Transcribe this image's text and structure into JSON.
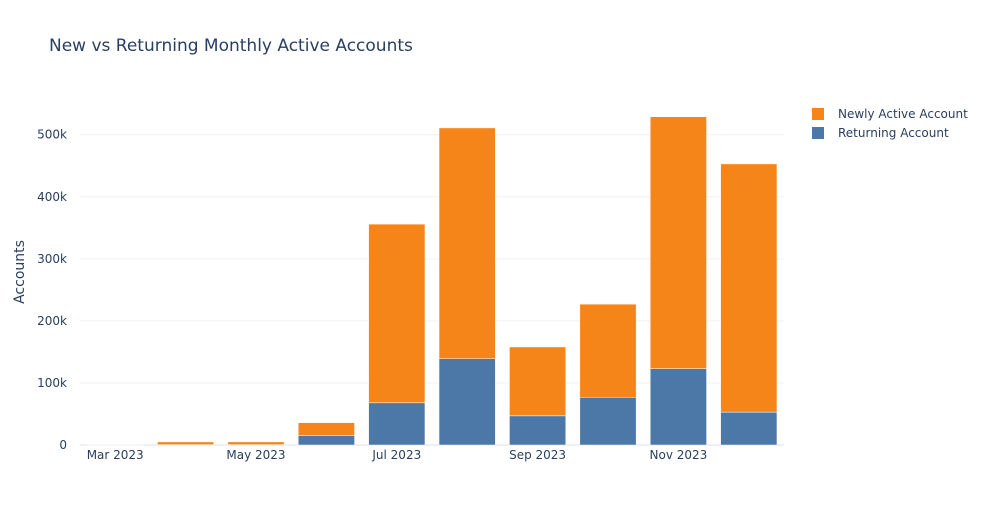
{
  "chart_data": {
    "type": "bar",
    "barmode": "stack",
    "title": "New vs Returning Monthly Active Accounts",
    "xlabel": "",
    "ylabel": "Accounts",
    "ylim": [
      0,
      556000
    ],
    "grid": true,
    "legend_position": "top-right",
    "categories": [
      "Mar 2023",
      "Apr 2023",
      "May 2023",
      "Jun 2023",
      "Jul 2023",
      "Aug 2023",
      "Sep 2023",
      "Oct 2023",
      "Nov 2023",
      "Dec 2023"
    ],
    "x_tick_labels": [
      "Mar 2023",
      "",
      "May 2023",
      "",
      "Jul 2023",
      "",
      "Sep 2023",
      "",
      "Nov 2023",
      ""
    ],
    "y_ticks": [
      0,
      100000,
      200000,
      300000,
      400000,
      500000
    ],
    "y_tick_labels": [
      "0",
      "100k",
      "200k",
      "300k",
      "400k",
      "500k"
    ],
    "series": [
      {
        "name": "Returning Account",
        "color": "#4c78a8",
        "values": [
          200,
          500,
          500,
          15000,
          68000,
          139000,
          47000,
          77000,
          123000,
          53000
        ]
      },
      {
        "name": "Newly Active Account",
        "color": "#f58518",
        "values": [
          300,
          4500,
          4500,
          21000,
          288000,
          372000,
          111000,
          150000,
          406000,
          400000
        ]
      }
    ],
    "legend_order": [
      "Newly Active Account",
      "Returning Account"
    ]
  }
}
